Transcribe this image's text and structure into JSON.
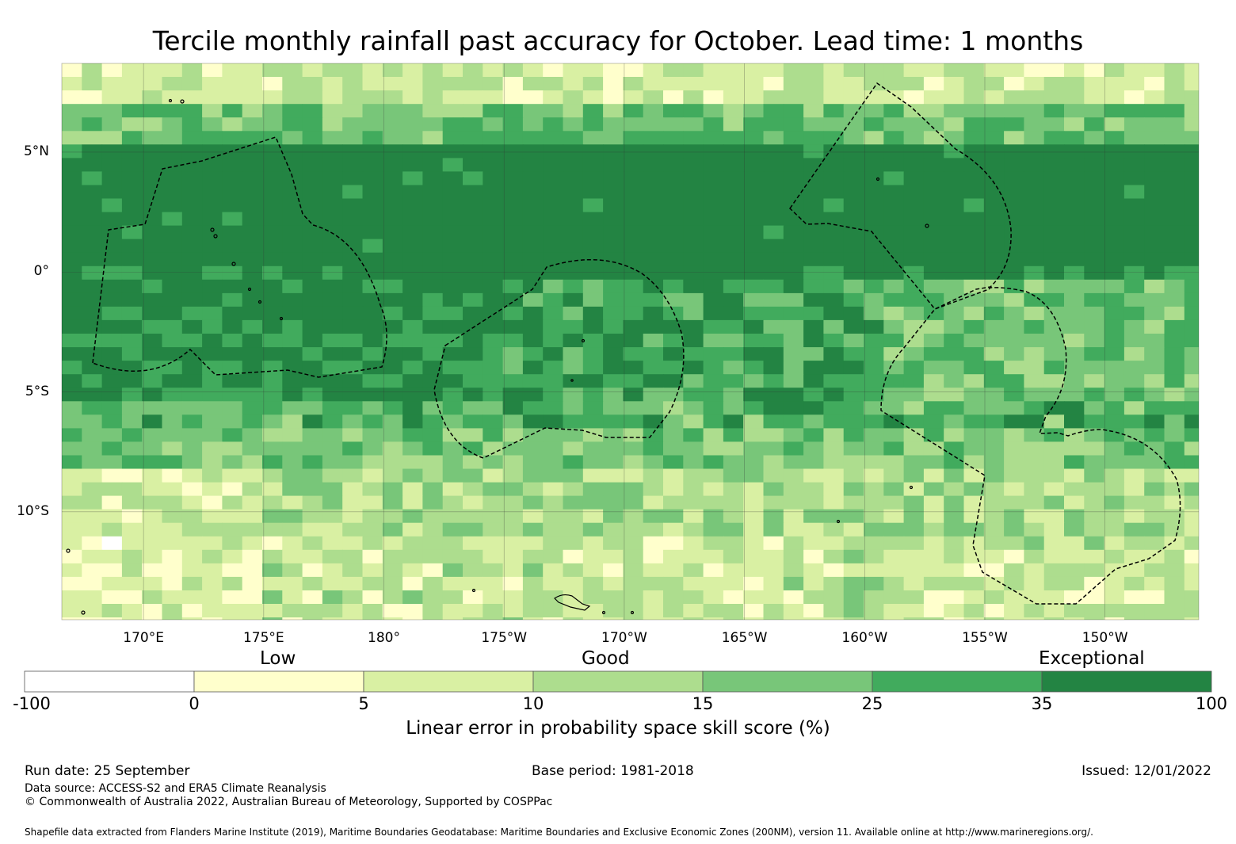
{
  "title": "Tercile monthly rainfall past accuracy for October. Lead time: 1 months",
  "map": {
    "lat_labels": [
      "5°N",
      "0°",
      "5°S",
      "10°S"
    ],
    "lon_labels": [
      "170°E",
      "175°E",
      "180°",
      "175°W",
      "170°W",
      "165°W",
      "160°W",
      "155°W",
      "150°W"
    ],
    "lat_ticks": [
      5,
      0,
      -5,
      -10
    ],
    "lon_ticks": [
      170,
      175,
      180,
      -175,
      -170,
      -165,
      -160,
      -155,
      -150
    ],
    "extent": {
      "lon_min": 166.6,
      "lon_max": 213.9,
      "lat_min": -14.5,
      "lat_max": 8.7
    }
  },
  "legend": {
    "category_labels": [
      "Low",
      "Good",
      "Exceptional"
    ],
    "boundaries": [
      "-100",
      "0",
      "5",
      "10",
      "15",
      "25",
      "35",
      "100"
    ],
    "colors": [
      "#ffffff",
      "#ffffcc",
      "#d9f0a3",
      "#addd8e",
      "#78c679",
      "#41ab5d",
      "#238443"
    ],
    "title": "Linear error in probability space skill score (%)"
  },
  "footer": {
    "run_date": "Run date: 25 September",
    "base_period": "Base period: 1981-2018",
    "issued": "Issued: 12/01/2022",
    "data_source": "Data source: ACCESS-S2 and ERA5 Climate Reanalysis",
    "copyright": "© Commonwealth of Australia 2022, Australian Bureau of Meteorology, Supported by COSPPac",
    "shapefile": "Shapefile data extracted from Flanders Marine Institute (2019), Maritime Boundaries Geodatabase: Maritime Boundaries and Exclusive Economic Zones (200NM), version 11. Available online at http://www.marineregions.org/."
  }
}
